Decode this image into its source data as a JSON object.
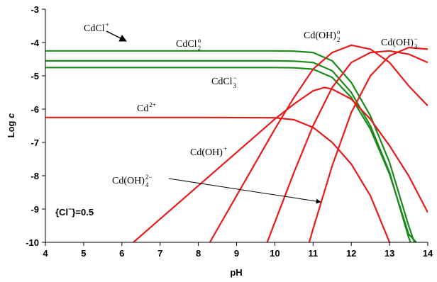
{
  "chart_data": {
    "type": "line",
    "x_label": "pH",
    "y_label": {
      "text": "Log",
      "var": "c"
    },
    "xlim": [
      4,
      14
    ],
    "ylim": [
      -10,
      -3
    ],
    "xticks": [
      4,
      5,
      6,
      7,
      8,
      9,
      10,
      11,
      12,
      13,
      14
    ],
    "yticks": [
      -3,
      -4,
      -5,
      -6,
      -7,
      -8,
      -9,
      -10
    ],
    "series": [
      {
        "color": "#1a8a1a",
        "x": [
          4,
          6,
          8,
          10,
          10.5,
          11,
          11.5,
          12,
          12.5,
          13,
          13.5,
          13.65
        ],
        "values": [
          -4.25,
          -4.25,
          -4.25,
          -4.25,
          -4.26,
          -4.3,
          -4.55,
          -5.2,
          -6.2,
          -7.6,
          -9.5,
          -10
        ]
      },
      {
        "color": "#1a8a1a",
        "x": [
          4,
          6,
          8,
          10,
          10.5,
          11,
          11.5,
          12,
          12.5,
          13,
          13.5,
          13.55
        ],
        "values": [
          -4.55,
          -4.55,
          -4.55,
          -4.55,
          -4.56,
          -4.6,
          -4.85,
          -5.5,
          -6.5,
          -7.9,
          -9.85,
          -10
        ]
      },
      {
        "color": "#1a8a1a",
        "x": [
          4,
          6,
          8,
          10,
          10.5,
          11,
          11.5,
          12,
          12.5,
          13,
          13.5,
          13.7
        ],
        "values": [
          -4.75,
          -4.75,
          -4.75,
          -4.75,
          -4.76,
          -4.8,
          -5.05,
          -5.65,
          -6.6,
          -7.95,
          -9.75,
          -10
        ]
      },
      {
        "color": "#e81a1a",
        "x": [
          4,
          6,
          8,
          10,
          10.5,
          11,
          11.5,
          12,
          12.5,
          13
        ],
        "values": [
          -6.25,
          -6.25,
          -6.25,
          -6.26,
          -6.32,
          -6.55,
          -7.0,
          -7.65,
          -8.6,
          -10
        ]
      },
      {
        "color": "#e81a1a",
        "x": [
          6.3,
          7,
          8,
          9,
          10,
          10.5,
          11,
          11.3,
          11.5,
          12,
          12.5,
          13,
          13.5,
          14
        ],
        "values": [
          -10,
          -9.3,
          -8.3,
          -7.3,
          -6.3,
          -5.85,
          -5.45,
          -5.35,
          -5.4,
          -5.7,
          -6.3,
          -7.1,
          -8.0,
          -9.1
        ]
      },
      {
        "color": "#e81a1a",
        "x": [
          8.3,
          9,
          10,
          10.5,
          11,
          11.5,
          12,
          12.5,
          13,
          13.5,
          14
        ],
        "values": [
          -10,
          -8.6,
          -6.6,
          -5.65,
          -4.8,
          -4.3,
          -4.08,
          -4.2,
          -4.6,
          -5.3,
          -5.9
        ]
      },
      {
        "color": "#e81a1a",
        "x": [
          9.8,
          10,
          10.5,
          11,
          11.5,
          12,
          12.5,
          13,
          13.5,
          14
        ],
        "values": [
          -10,
          -9.4,
          -7.9,
          -6.5,
          -5.35,
          -4.6,
          -4.3,
          -4.25,
          -4.35,
          -4.6
        ]
      },
      {
        "color": "#e81a1a",
        "x": [
          10.9,
          11,
          11.5,
          12,
          12.5,
          13,
          13.5,
          14
        ],
        "values": [
          -10,
          -9.6,
          -7.7,
          -6.1,
          -5.0,
          -4.4,
          -4.15,
          -4.2
        ]
      }
    ],
    "annotations": [
      {
        "text": "CdCl",
        "sup": "+"
      },
      {
        "text": "CdCl",
        "sub": "2",
        "sup": "o"
      },
      {
        "text": "CdCl",
        "sub": "3",
        "sup": "−"
      },
      {
        "text": "Cd",
        "sup": "2+"
      },
      {
        "text": "Cd(OH)",
        "sup": "+"
      },
      {
        "text": "Cd(OH)",
        "sub": "4",
        "sup": "2−"
      },
      {
        "text": "Cd(OH)",
        "sub": "2",
        "sup": "o"
      },
      {
        "text": "Cd(OH)",
        "sub": "3",
        "sup": "−"
      }
    ],
    "condition": {
      "pre": "{Cl",
      "sup": "−",
      "post": "}=0.5"
    }
  }
}
